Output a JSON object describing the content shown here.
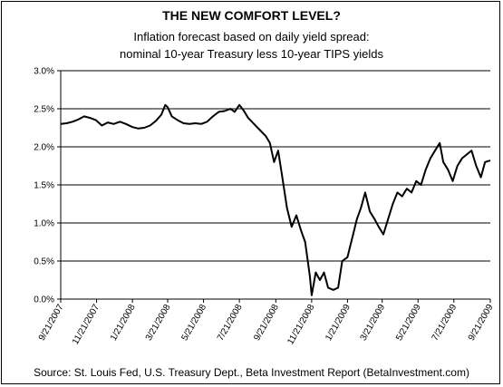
{
  "chart_data": {
    "type": "line",
    "title": "THE NEW COMFORT LEVEL?",
    "subtitle_line1": "Inflation forecast based on daily yield spread:",
    "subtitle_line2": "nominal 10-year Treasury less 10-year TIPS yields",
    "source": "Source: St. Louis Fed, U.S. Treasury Dept., Beta Investment Report (BetaInvestment.com)",
    "xlabel": "",
    "ylabel": "",
    "ylim": [
      0,
      3.0
    ],
    "y_ticks": [
      0,
      0.5,
      1.0,
      1.5,
      2.0,
      2.5,
      3.0
    ],
    "y_tick_labels": [
      "0.0%",
      "0.5%",
      "1.0%",
      "1.5%",
      "2.0%",
      "2.5%",
      "3.0%"
    ],
    "x_range": [
      "9/21/2007",
      "9/21/2009"
    ],
    "x_tick_labels": [
      "9/21/2007",
      "11/21/2007",
      "1/21/2008",
      "3/21/2008",
      "5/21/2008",
      "7/21/2008",
      "9/21/2008",
      "11/21/2008",
      "1/21/2009",
      "3/21/2009",
      "5/21/2009",
      "7/21/2009",
      "9/21/2009"
    ],
    "grid": "horizontal",
    "series": [
      {
        "color": "#000000",
        "points": [
          [
            "9/21/2007",
            2.3
          ],
          [
            "10/1/2007",
            2.31
          ],
          [
            "10/11/2007",
            2.33
          ],
          [
            "10/21/2007",
            2.36
          ],
          [
            "10/31/2007",
            2.4
          ],
          [
            "11/10/2007",
            2.38
          ],
          [
            "11/20/2007",
            2.35
          ],
          [
            "11/30/2007",
            2.28
          ],
          [
            "12/10/2007",
            2.32
          ],
          [
            "12/20/2007",
            2.3
          ],
          [
            "12/31/2007",
            2.33
          ],
          [
            "1/10/2008",
            2.3
          ],
          [
            "1/21/2008",
            2.26
          ],
          [
            "1/31/2008",
            2.24
          ],
          [
            "2/10/2008",
            2.25
          ],
          [
            "2/20/2008",
            2.28
          ],
          [
            "3/1/2008",
            2.34
          ],
          [
            "3/10/2008",
            2.42
          ],
          [
            "3/17/2008",
            2.55
          ],
          [
            "3/21/2008",
            2.52
          ],
          [
            "3/28/2008",
            2.4
          ],
          [
            "4/7/2008",
            2.35
          ],
          [
            "4/17/2008",
            2.31
          ],
          [
            "4/27/2008",
            2.3
          ],
          [
            "5/7/2008",
            2.31
          ],
          [
            "5/17/2008",
            2.3
          ],
          [
            "5/27/2008",
            2.33
          ],
          [
            "6/6/2008",
            2.4
          ],
          [
            "6/16/2008",
            2.46
          ],
          [
            "6/26/2008",
            2.47
          ],
          [
            "7/6/2008",
            2.5
          ],
          [
            "7/13/2008",
            2.46
          ],
          [
            "7/21/2008",
            2.55
          ],
          [
            "7/28/2008",
            2.48
          ],
          [
            "8/5/2008",
            2.38
          ],
          [
            "8/15/2008",
            2.3
          ],
          [
            "8/25/2008",
            2.22
          ],
          [
            "9/4/2008",
            2.14
          ],
          [
            "9/11/2008",
            2.05
          ],
          [
            "9/18/2008",
            1.8
          ],
          [
            "9/25/2008",
            1.95
          ],
          [
            "10/2/2008",
            1.6
          ],
          [
            "10/10/2008",
            1.2
          ],
          [
            "10/18/2008",
            0.95
          ],
          [
            "10/26/2008",
            1.1
          ],
          [
            "11/3/2008",
            0.9
          ],
          [
            "11/10/2008",
            0.75
          ],
          [
            "11/18/2008",
            0.3
          ],
          [
            "11/21/2008",
            0.05
          ],
          [
            "11/28/2008",
            0.35
          ],
          [
            "12/5/2008",
            0.25
          ],
          [
            "12/12/2008",
            0.35
          ],
          [
            "12/19/2008",
            0.15
          ],
          [
            "12/28/2008",
            0.12
          ],
          [
            "1/5/2009",
            0.15
          ],
          [
            "1/12/2009",
            0.5
          ],
          [
            "1/21/2009",
            0.55
          ],
          [
            "1/29/2009",
            0.8
          ],
          [
            "2/6/2009",
            1.05
          ],
          [
            "2/13/2009",
            1.2
          ],
          [
            "2/20/2009",
            1.4
          ],
          [
            "2/28/2009",
            1.15
          ],
          [
            "3/8/2009",
            1.05
          ],
          [
            "3/15/2009",
            0.95
          ],
          [
            "3/23/2009",
            0.85
          ],
          [
            "3/31/2009",
            1.05
          ],
          [
            "4/8/2009",
            1.25
          ],
          [
            "4/16/2009",
            1.4
          ],
          [
            "4/24/2009",
            1.35
          ],
          [
            "5/2/2009",
            1.45
          ],
          [
            "5/10/2009",
            1.4
          ],
          [
            "5/18/2009",
            1.55
          ],
          [
            "5/26/2009",
            1.5
          ],
          [
            "6/3/2009",
            1.7
          ],
          [
            "6/11/2009",
            1.85
          ],
          [
            "6/19/2009",
            1.95
          ],
          [
            "6/27/2009",
            2.05
          ],
          [
            "7/3/2009",
            1.8
          ],
          [
            "7/11/2009",
            1.7
          ],
          [
            "7/19/2009",
            1.55
          ],
          [
            "7/27/2009",
            1.75
          ],
          [
            "8/4/2009",
            1.85
          ],
          [
            "8/12/2009",
            1.9
          ],
          [
            "8/20/2009",
            1.95
          ],
          [
            "8/28/2009",
            1.75
          ],
          [
            "9/5/2009",
            1.6
          ],
          [
            "9/12/2009",
            1.8
          ],
          [
            "9/21/2009",
            1.82
          ]
        ]
      }
    ]
  }
}
